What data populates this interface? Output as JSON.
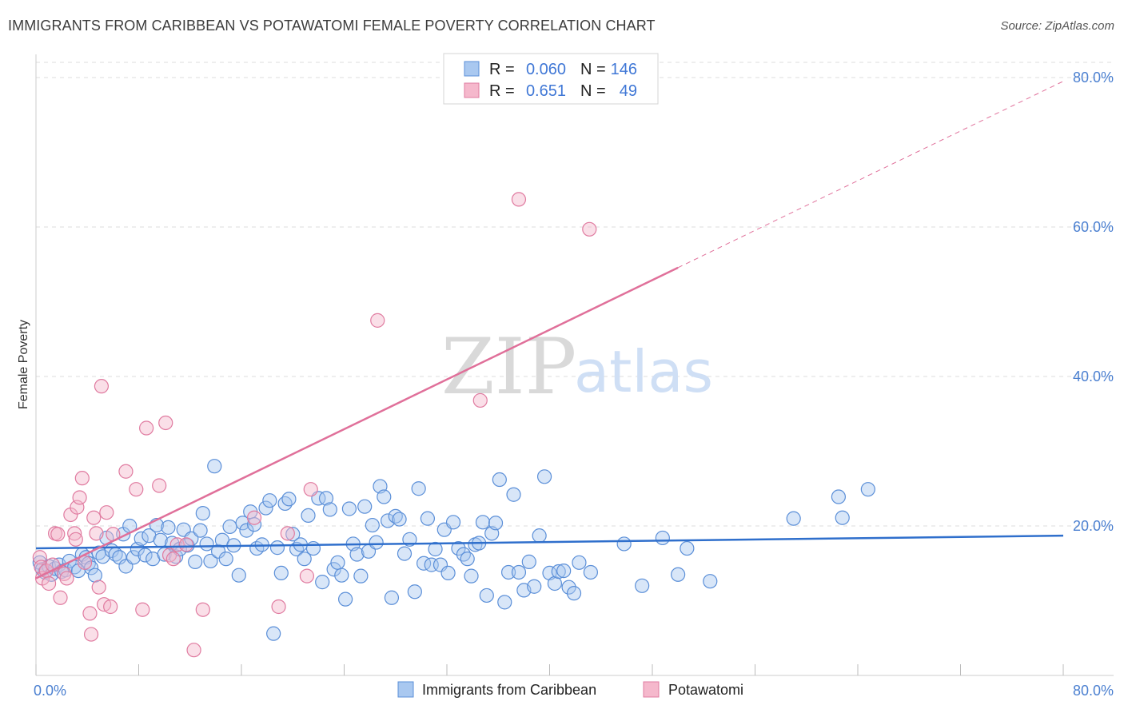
{
  "title": "IMMIGRANTS FROM CARIBBEAN VS POTAWATOMI FEMALE POVERTY CORRELATION CHART",
  "source": "Source: ZipAtlas.com",
  "watermark": {
    "zip": "ZIP",
    "atlas": "atlas"
  },
  "colors": {
    "blue_fill": "#a9c8f0",
    "blue_stroke": "#5b8fd8",
    "blue_line": "#2f6fcc",
    "pink_fill": "#f5b8cc",
    "pink_stroke": "#e07ba0",
    "pink_line": "#e0709a",
    "grid": "#dddddd",
    "axis_text": "#4a7fd0"
  },
  "legend": {
    "r_label": "R =",
    "n_label": "N =",
    "rows": [
      {
        "r": "0.060",
        "n": "146"
      },
      {
        "r": "0.651",
        "n": "49"
      }
    ]
  },
  "chart_data": {
    "type": "scatter",
    "title": "IMMIGRANTS FROM CARIBBEAN VS POTAWATOMI FEMALE POVERTY CORRELATION CHART",
    "xlabel": "",
    "ylabel": "Female Poverty",
    "xlim": [
      0,
      80
    ],
    "ylim": [
      0,
      82
    ],
    "x_tick_labels": [
      "0.0%",
      "80.0%"
    ],
    "y_ticks": [
      20,
      40,
      60,
      80
    ],
    "y_tick_labels": [
      "20.0%",
      "40.0%",
      "60.0%",
      "80.0%"
    ],
    "grid": true,
    "legend_position": "bottom",
    "series": [
      {
        "name": "Immigrants from Caribbean",
        "trend": {
          "x0": 0,
          "y0": 17.0,
          "x1": 80,
          "y1": 18.7,
          "dashed_from": null
        },
        "points": [
          [
            0.3,
            15.1
          ],
          [
            0.5,
            14.2
          ],
          [
            0.7,
            13.8
          ],
          [
            1.0,
            14.6
          ],
          [
            1.2,
            13.5
          ],
          [
            1.5,
            14.3
          ],
          [
            1.8,
            14.8
          ],
          [
            2.0,
            13.9
          ],
          [
            2.3,
            14.1
          ],
          [
            2.6,
            15.3
          ],
          [
            3.0,
            14.5
          ],
          [
            3.3,
            14.0
          ],
          [
            3.6,
            16.2
          ],
          [
            3.9,
            15.8
          ],
          [
            4.1,
            15.0
          ],
          [
            4.3,
            14.4
          ],
          [
            4.6,
            13.4
          ],
          [
            4.9,
            16.4
          ],
          [
            5.2,
            15.9
          ],
          [
            5.5,
            18.4
          ],
          [
            5.9,
            16.7
          ],
          [
            6.2,
            16.2
          ],
          [
            6.5,
            15.8
          ],
          [
            6.8,
            18.9
          ],
          [
            7.0,
            14.6
          ],
          [
            7.3,
            20.0
          ],
          [
            7.6,
            15.8
          ],
          [
            7.9,
            16.9
          ],
          [
            8.2,
            18.3
          ],
          [
            8.5,
            16.1
          ],
          [
            8.8,
            18.7
          ],
          [
            9.1,
            15.6
          ],
          [
            9.4,
            20.1
          ],
          [
            9.7,
            18.1
          ],
          [
            10.0,
            16.2
          ],
          [
            10.3,
            19.8
          ],
          [
            10.6,
            17.7
          ],
          [
            10.9,
            15.9
          ],
          [
            11.2,
            16.9
          ],
          [
            11.5,
            19.5
          ],
          [
            11.8,
            17.4
          ],
          [
            12.1,
            18.3
          ],
          [
            12.4,
            15.2
          ],
          [
            12.8,
            19.4
          ],
          [
            13.0,
            21.7
          ],
          [
            13.3,
            17.6
          ],
          [
            13.6,
            15.3
          ],
          [
            13.9,
            28.0
          ],
          [
            14.2,
            16.6
          ],
          [
            14.5,
            18.1
          ],
          [
            14.8,
            15.6
          ],
          [
            15.1,
            19.9
          ],
          [
            15.4,
            17.4
          ],
          [
            15.8,
            13.4
          ],
          [
            16.1,
            20.4
          ],
          [
            16.4,
            19.4
          ],
          [
            16.7,
            21.9
          ],
          [
            17.0,
            20.2
          ],
          [
            17.2,
            17.0
          ],
          [
            17.6,
            17.5
          ],
          [
            17.9,
            22.4
          ],
          [
            18.2,
            23.4
          ],
          [
            18.5,
            5.6
          ],
          [
            18.8,
            17.1
          ],
          [
            19.1,
            13.7
          ],
          [
            19.4,
            23.0
          ],
          [
            19.7,
            23.6
          ],
          [
            20.0,
            18.9
          ],
          [
            20.3,
            16.9
          ],
          [
            20.6,
            17.5
          ],
          [
            20.9,
            15.6
          ],
          [
            21.2,
            21.4
          ],
          [
            21.6,
            17.0
          ],
          [
            22.0,
            23.7
          ],
          [
            22.3,
            12.5
          ],
          [
            22.6,
            23.7
          ],
          [
            22.9,
            22.2
          ],
          [
            23.2,
            14.2
          ],
          [
            23.5,
            15.1
          ],
          [
            23.8,
            13.4
          ],
          [
            24.1,
            10.2
          ],
          [
            24.4,
            22.3
          ],
          [
            24.7,
            17.6
          ],
          [
            25.0,
            16.2
          ],
          [
            25.3,
            13.3
          ],
          [
            25.6,
            22.6
          ],
          [
            25.9,
            16.6
          ],
          [
            26.2,
            20.1
          ],
          [
            26.5,
            17.8
          ],
          [
            26.8,
            25.3
          ],
          [
            27.1,
            23.9
          ],
          [
            27.4,
            20.7
          ],
          [
            27.7,
            10.4
          ],
          [
            28.0,
            21.3
          ],
          [
            28.3,
            20.9
          ],
          [
            28.7,
            16.3
          ],
          [
            29.1,
            18.2
          ],
          [
            29.5,
            11.2
          ],
          [
            29.8,
            25.0
          ],
          [
            30.2,
            15.0
          ],
          [
            30.5,
            21.0
          ],
          [
            30.8,
            14.8
          ],
          [
            31.1,
            16.9
          ],
          [
            31.5,
            14.8
          ],
          [
            31.8,
            19.5
          ],
          [
            32.1,
            13.7
          ],
          [
            32.5,
            20.5
          ],
          [
            32.9,
            17.0
          ],
          [
            33.3,
            16.2
          ],
          [
            33.6,
            15.6
          ],
          [
            33.9,
            13.3
          ],
          [
            34.2,
            17.5
          ],
          [
            34.5,
            17.7
          ],
          [
            34.8,
            20.5
          ],
          [
            35.1,
            10.7
          ],
          [
            35.5,
            19.0
          ],
          [
            35.8,
            20.4
          ],
          [
            36.1,
            26.2
          ],
          [
            36.5,
            9.8
          ],
          [
            36.8,
            13.8
          ],
          [
            37.2,
            24.2
          ],
          [
            37.6,
            13.8
          ],
          [
            38.0,
            11.4
          ],
          [
            38.4,
            15.2
          ],
          [
            38.8,
            11.9
          ],
          [
            39.2,
            18.7
          ],
          [
            39.6,
            26.6
          ],
          [
            40.0,
            13.7
          ],
          [
            40.4,
            12.3
          ],
          [
            40.7,
            13.9
          ],
          [
            41.1,
            14.0
          ],
          [
            41.5,
            11.8
          ],
          [
            41.9,
            11.0
          ],
          [
            42.3,
            15.1
          ],
          [
            43.2,
            13.8
          ],
          [
            45.8,
            17.6
          ],
          [
            47.2,
            12.0
          ],
          [
            48.8,
            18.4
          ],
          [
            50.0,
            13.5
          ],
          [
            50.7,
            17.0
          ],
          [
            52.5,
            12.6
          ],
          [
            59.0,
            21.0
          ],
          [
            62.5,
            23.9
          ],
          [
            62.8,
            21.1
          ],
          [
            64.8,
            24.9
          ]
        ]
      },
      {
        "name": "Potawatomi",
        "trend": {
          "x0": 0,
          "y0": 13.0,
          "x1": 80,
          "y1": 79.5,
          "dashed_from": 50
        },
        "points": [
          [
            0.3,
            15.8
          ],
          [
            0.4,
            14.5
          ],
          [
            0.5,
            13.0
          ],
          [
            0.8,
            14.0
          ],
          [
            1.0,
            12.3
          ],
          [
            1.3,
            14.8
          ],
          [
            1.5,
            19.0
          ],
          [
            1.7,
            18.9
          ],
          [
            1.9,
            10.4
          ],
          [
            2.2,
            13.6
          ],
          [
            2.4,
            13.0
          ],
          [
            2.7,
            21.5
          ],
          [
            3.0,
            19.0
          ],
          [
            3.1,
            18.2
          ],
          [
            3.2,
            22.5
          ],
          [
            3.4,
            23.8
          ],
          [
            3.6,
            26.4
          ],
          [
            3.8,
            15.1
          ],
          [
            4.2,
            8.3
          ],
          [
            4.3,
            5.5
          ],
          [
            4.5,
            21.1
          ],
          [
            4.7,
            19.0
          ],
          [
            4.9,
            11.8
          ],
          [
            5.1,
            38.7
          ],
          [
            5.3,
            9.5
          ],
          [
            5.5,
            21.8
          ],
          [
            5.8,
            9.2
          ],
          [
            6.0,
            18.9
          ],
          [
            7.0,
            27.3
          ],
          [
            7.8,
            24.9
          ],
          [
            8.3,
            8.8
          ],
          [
            8.6,
            33.1
          ],
          [
            9.6,
            25.4
          ],
          [
            10.1,
            33.8
          ],
          [
            10.4,
            16.1
          ],
          [
            10.7,
            15.6
          ],
          [
            11.0,
            17.5
          ],
          [
            11.7,
            17.5
          ],
          [
            12.3,
            3.4
          ],
          [
            13.0,
            8.8
          ],
          [
            17.0,
            21.1
          ],
          [
            18.9,
            9.2
          ],
          [
            19.6,
            19.0
          ],
          [
            21.1,
            13.3
          ],
          [
            21.4,
            24.9
          ],
          [
            26.6,
            47.5
          ],
          [
            34.6,
            36.8
          ],
          [
            37.6,
            63.7
          ],
          [
            43.1,
            59.7
          ]
        ]
      }
    ]
  }
}
